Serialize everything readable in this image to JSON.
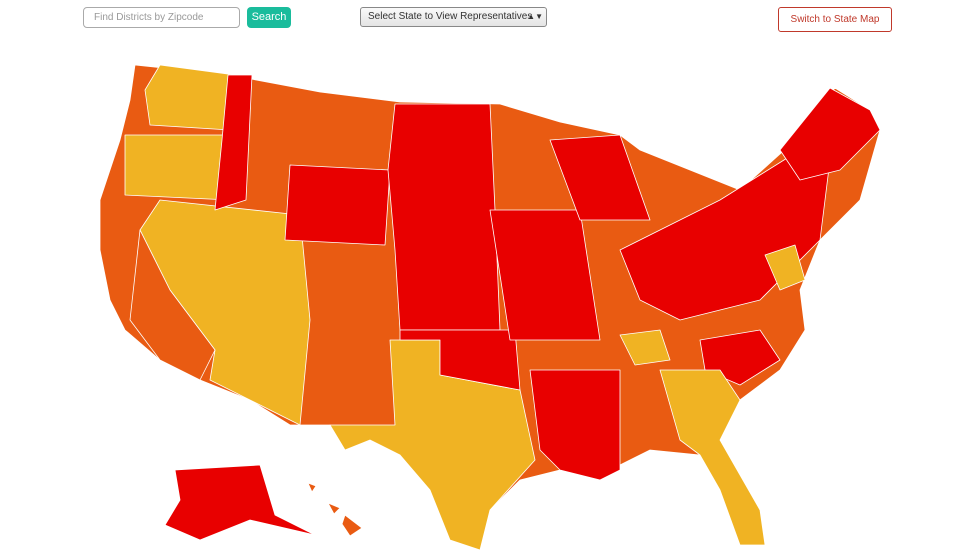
{
  "search": {
    "placeholder": "Find Districts by Zipcode",
    "button": "Search"
  },
  "state_select": {
    "label": "Select State to View Representatives"
  },
  "map_toggle": {
    "label": "Switch to State Map"
  }
}
